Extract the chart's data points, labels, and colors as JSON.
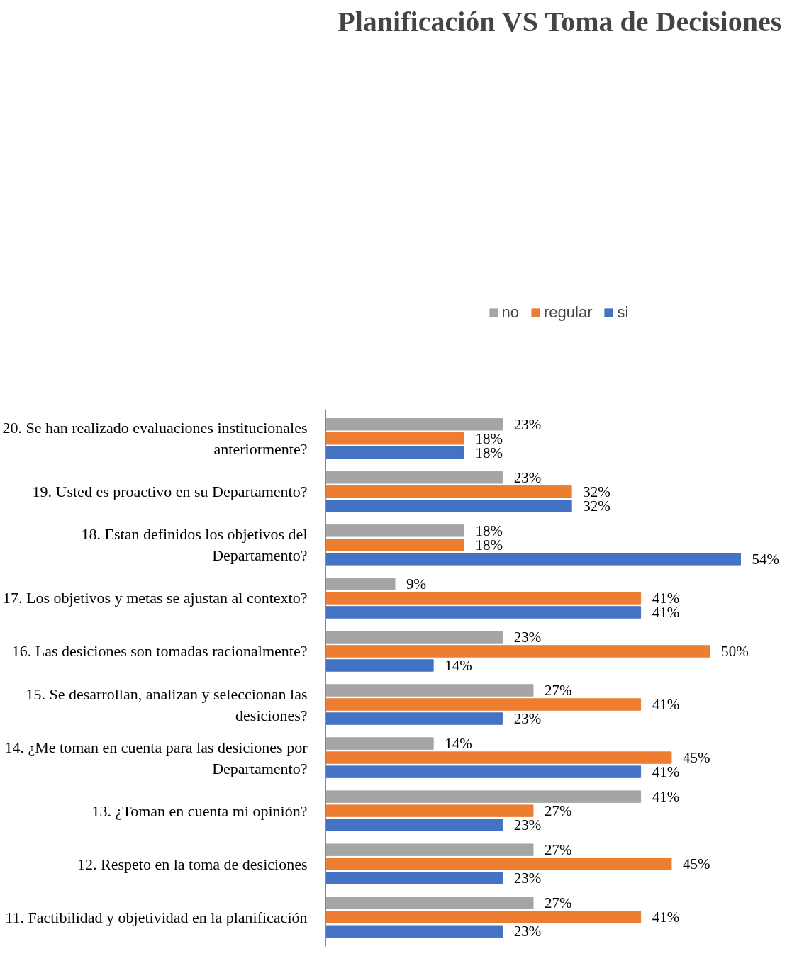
{
  "chart_data": {
    "type": "bar",
    "orientation": "horizontal",
    "title": "Planificación VS Toma de Decisiones",
    "categories": [
      "20. Se han realizado evaluaciones institucionales anteriormente?",
      "19. Usted es proactivo en su Departamento?",
      "18. Estan definidos los objetivos del Departamento?",
      "17. Los objetivos y metas se ajustan al contexto?",
      "16. Las desiciones son tomadas racionalmente?",
      "15. Se desarrollan, analizan y seleccionan las desiciones?",
      "14. ¿Me toman en cuenta para las desiciones por Departamento?",
      "13. ¿Toman en cuenta mi opinión?",
      "12. Respeto en la toma de desiciones",
      "11. Factibilidad y objetividad en la planificación"
    ],
    "series": [
      {
        "name": "no",
        "color": "#a5a5a5",
        "values": [
          23,
          23,
          18,
          9,
          23,
          27,
          14,
          41,
          27,
          27
        ],
        "value_labels": [
          "23%",
          "23%",
          "18%",
          "9%",
          "23%",
          "27%",
          "14%",
          "41%",
          "27%",
          "27%"
        ]
      },
      {
        "name": "regular",
        "color": "#ed7d31",
        "values": [
          18,
          32,
          18,
          41,
          50,
          41,
          45,
          27,
          45,
          41
        ],
        "value_labels": [
          "18%",
          "32%",
          "18%",
          "41%",
          "50%",
          "41%",
          "45%",
          "27%",
          "45%",
          "41%"
        ]
      },
      {
        "name": "si",
        "color": "#4472c4",
        "values": [
          18,
          32,
          54,
          41,
          14,
          23,
          41,
          23,
          23,
          23
        ],
        "value_labels": [
          "18%",
          "32%",
          "54%",
          "41%",
          "14%",
          "23%",
          "41%",
          "23%",
          "23%",
          "23%"
        ]
      }
    ],
    "legend": "top",
    "grid": false
  }
}
